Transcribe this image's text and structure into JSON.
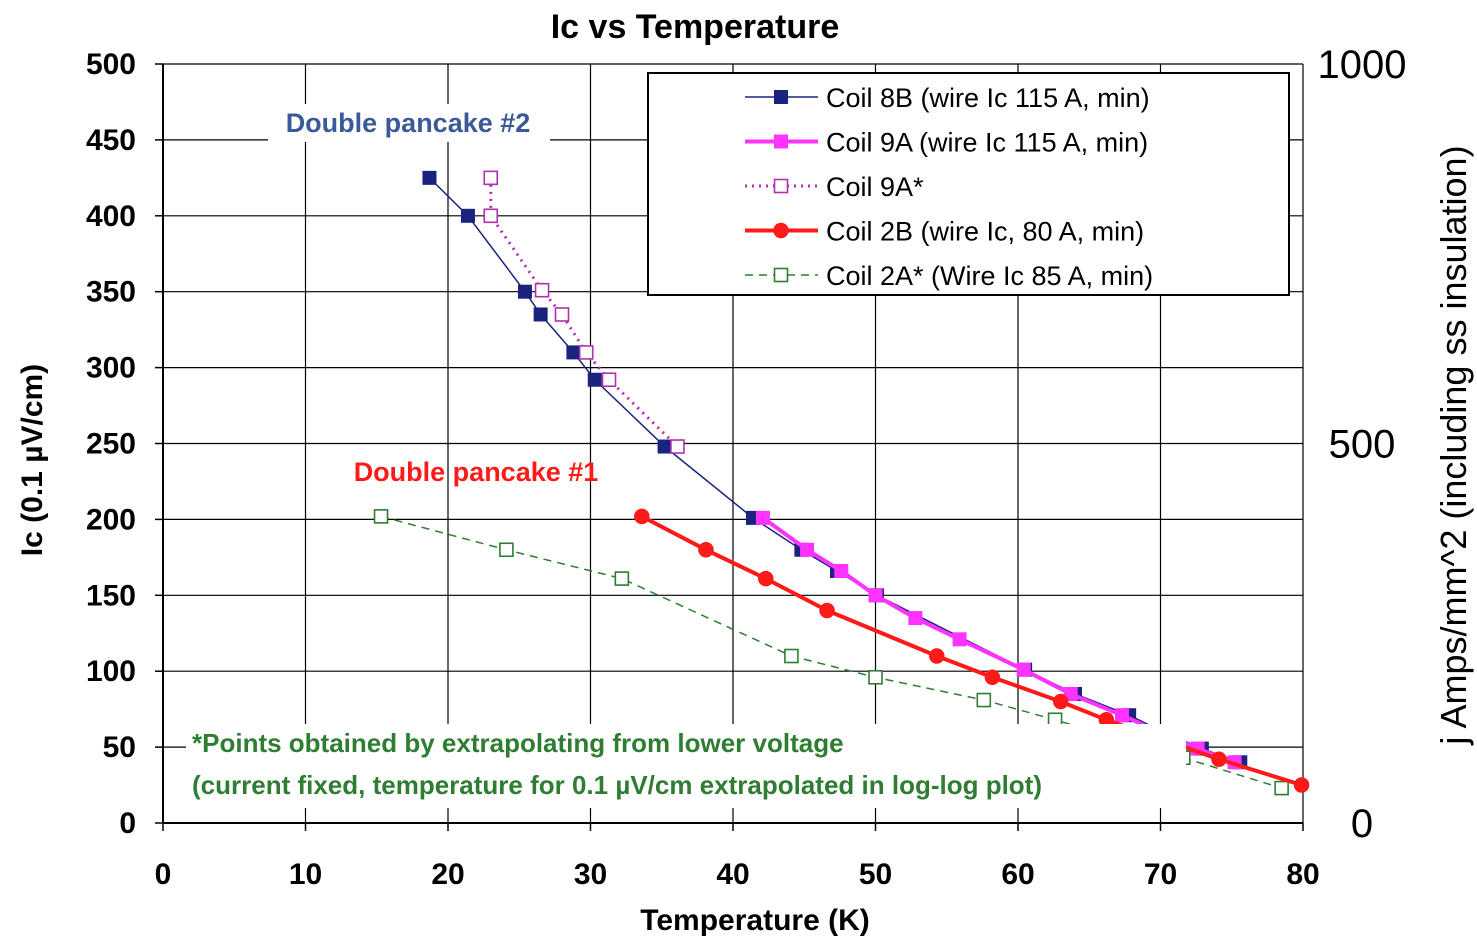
{
  "chart_data": {
    "type": "line",
    "title": "Ic vs Temperature",
    "xlabel": "Temperature (K)",
    "ylabel": "Ic (0.1 µV/cm)",
    "y2label": "j Amps/mm^2 (including ss insulation)",
    "xlim": [
      0,
      80
    ],
    "ylim": [
      0,
      500
    ],
    "y2lim": [
      0,
      1000
    ],
    "x_ticks": [
      "0",
      "10",
      "20",
      "30",
      "40",
      "50",
      "60",
      "70",
      "80"
    ],
    "y_ticks": [
      "0",
      "50",
      "100",
      "150",
      "200",
      "250",
      "300",
      "350",
      "400",
      "450",
      "500"
    ],
    "y2_ticks": [
      "0",
      "500",
      "1000"
    ],
    "grid": true,
    "legend_position": "top-right",
    "series": [
      {
        "name": "Coil 8B (wire Ic 115 A, min)",
        "color": "#1a237e",
        "marker": "square-filled",
        "line": "solid",
        "lineWidth": 1.5,
        "points": [
          [
            18.7,
            425
          ],
          [
            21.4,
            400
          ],
          [
            25.4,
            350
          ],
          [
            26.5,
            335
          ],
          [
            28.8,
            310
          ],
          [
            30.3,
            292
          ],
          [
            35.2,
            248
          ],
          [
            41.4,
            201
          ],
          [
            44.8,
            180
          ],
          [
            47.3,
            166
          ],
          [
            50.1,
            150
          ],
          [
            60.5,
            101
          ],
          [
            64.0,
            85
          ],
          [
            67.8,
            71
          ],
          [
            70.2,
            60
          ],
          [
            72.9,
            49
          ],
          [
            75.6,
            40
          ]
        ]
      },
      {
        "name": "Coil 9A (wire Ic 115 A, min)",
        "color": "#ff33ff",
        "marker": "square-filled",
        "line": "solid",
        "lineWidth": 4,
        "points": [
          [
            42.1,
            201
          ],
          [
            45.2,
            180
          ],
          [
            47.6,
            166
          ],
          [
            50.0,
            150
          ],
          [
            52.8,
            135
          ],
          [
            55.9,
            121
          ],
          [
            60.4,
            101
          ],
          [
            63.7,
            85
          ],
          [
            67.3,
            71
          ],
          [
            69.9,
            60
          ],
          [
            72.6,
            49
          ],
          [
            75.2,
            40
          ]
        ]
      },
      {
        "name": "Coil 9A*",
        "color": "#b030b0",
        "marker": "square-open",
        "line": "dotted",
        "lineWidth": 3,
        "points": [
          [
            23.0,
            425
          ],
          [
            23.0,
            400
          ],
          [
            26.6,
            351
          ],
          [
            28.0,
            335
          ],
          [
            29.7,
            310
          ],
          [
            31.3,
            292
          ],
          [
            36.1,
            248
          ]
        ]
      },
      {
        "name": "Coil 2B (wire Ic, 80 A, min)",
        "color": "#ff1a1a",
        "marker": "circle-filled",
        "line": "solid",
        "lineWidth": 4,
        "points": [
          [
            33.6,
            202
          ],
          [
            38.1,
            180
          ],
          [
            42.3,
            161
          ],
          [
            46.6,
            140
          ],
          [
            54.3,
            110
          ],
          [
            58.2,
            96
          ],
          [
            63.0,
            80
          ],
          [
            66.2,
            68
          ],
          [
            74.1,
            42
          ],
          [
            79.9,
            25
          ]
        ]
      },
      {
        "name": "Coil 2A* (Wire Ic 85 A, min)",
        "color": "#2e7d32",
        "marker": "square-open",
        "line": "dashed",
        "lineWidth": 1.5,
        "points": [
          [
            15.3,
            202
          ],
          [
            24.1,
            180
          ],
          [
            32.2,
            161
          ],
          [
            44.1,
            110
          ],
          [
            50.0,
            96
          ],
          [
            57.6,
            81
          ],
          [
            62.6,
            68
          ],
          [
            71.6,
            43
          ],
          [
            78.5,
            23
          ]
        ]
      }
    ],
    "annotations": [
      {
        "text": "Double pancake #2",
        "color": "#3b5998"
      },
      {
        "text": "Double pancake #1",
        "color": "#ff1a1a"
      }
    ],
    "notes": [
      "*Points obtained by extrapolating from lower voltage",
      "(current fixed, temperature for 0.1 µV/cm extrapolated in log-log plot)"
    ]
  }
}
